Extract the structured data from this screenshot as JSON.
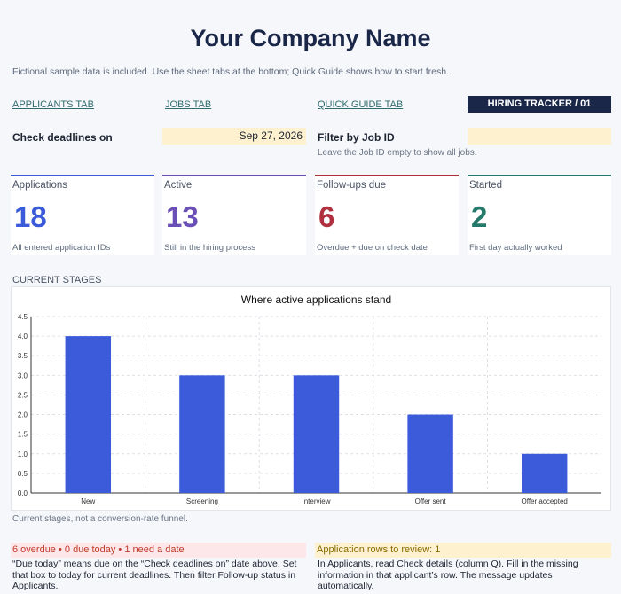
{
  "header": {
    "title": "Your Company Name",
    "subtitle": "Fictional sample data is included. Use the sheet tabs at the bottom; Quick Guide shows how to start fresh."
  },
  "nav": {
    "applicants": "APPLICANTS TAB",
    "jobs": "JOBS TAB",
    "quick_guide": "QUICK GUIDE TAB",
    "badge": "HIRING TRACKER  /  01"
  },
  "controls": {
    "deadline_label": "Check deadlines on",
    "deadline_value": "Sep 27, 2026",
    "filter_label": "Filter by Job ID",
    "filter_value": "",
    "filter_hint": "Leave the Job ID empty to show all jobs."
  },
  "cards": [
    {
      "label": "Applications",
      "value": "18",
      "note": "All entered application IDs",
      "color": "#3b5bdb"
    },
    {
      "label": "Active",
      "value": "13",
      "note": "Still in the hiring process",
      "color": "#6a4fb8"
    },
    {
      "label": "Follow-ups due",
      "value": "6",
      "note": "Overdue + due on check date",
      "color": "#b0303f"
    },
    {
      "label": "Started",
      "value": "2",
      "note": "First day actually worked",
      "color": "#237a6a"
    }
  ],
  "section": {
    "current_stages": "CURRENT STAGES",
    "chart_note": "Current stages, not a conversion-rate funnel."
  },
  "chart_data": {
    "type": "bar",
    "title": "Where active applications stand",
    "categories": [
      "New",
      "Screening",
      "Interview",
      "Offer sent",
      "Offer accepted"
    ],
    "values": [
      4,
      3,
      3,
      2,
      1
    ],
    "ylim": [
      0,
      4.5
    ],
    "yticks": [
      "0.0",
      "0.5",
      "1.0",
      "1.5",
      "2.0",
      "2.5",
      "3.0",
      "3.5",
      "4.0",
      "4.5"
    ],
    "bar_color": "#3b5bdb",
    "grid": true
  },
  "alerts": {
    "followups": "6 overdue  •  0 due today  •  1 need a date",
    "followups_text": "“Due today” means due on the “Check deadlines on” date above. Set that box to today for current deadlines. Then filter Follow-up status in Applicants.",
    "review": "Application rows to review: 1",
    "review_text": "In Applicants, read Check details (column Q). Fill in the missing information in that applicant’s row. The message updates automatically."
  }
}
